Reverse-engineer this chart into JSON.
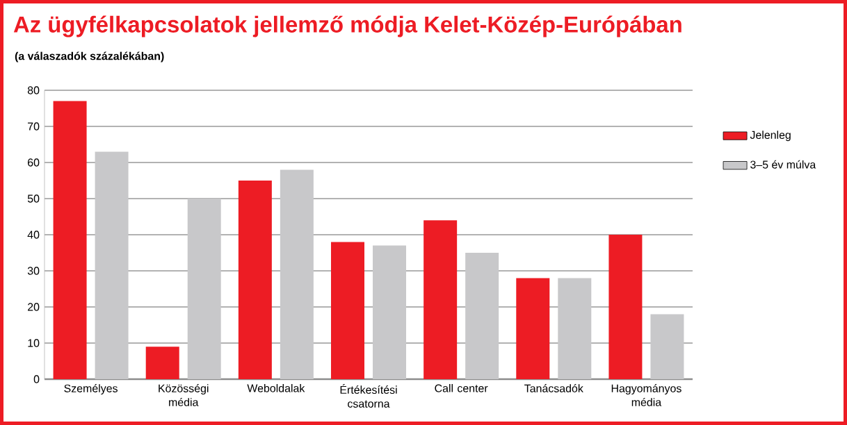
{
  "chart_data": {
    "type": "bar",
    "title": "Az ügyfélkapcsolatok jellemző módja Kelet-Közép-Európában",
    "subtitle": "(a válaszadók százalékában)",
    "categories": [
      "Személyes",
      "Közösségi média",
      "Weboldalak",
      "Értékesítési csatorna",
      "Call center",
      "Tanácsadók",
      "Hagyományos média"
    ],
    "series": [
      {
        "name": "Jelenleg",
        "color": "#ed1c24",
        "values": [
          77,
          9,
          55,
          38,
          44,
          28,
          40
        ]
      },
      {
        "name": "3–5 év múlva",
        "color": "#c8c8ca",
        "values": [
          63,
          50,
          58,
          37,
          35,
          28,
          18
        ]
      }
    ],
    "ylim": [
      0,
      80
    ],
    "yticks": [
      0,
      10,
      20,
      30,
      40,
      50,
      60,
      70,
      80
    ],
    "grid": "y",
    "legend": "right"
  }
}
